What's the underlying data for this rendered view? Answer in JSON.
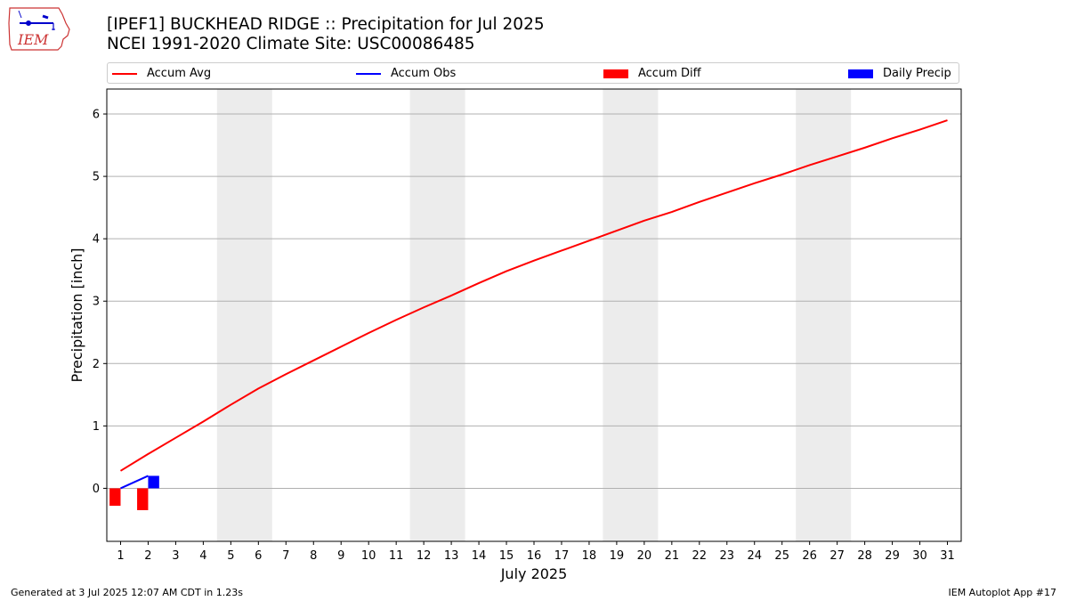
{
  "header": {
    "logo_text": "IEM",
    "title_line1": "[IPEF1] BUCKHEAD RIDGE :: Precipitation for Jul 2025",
    "title_line2": "NCEI 1991-2020 Climate Site: USC00086485"
  },
  "legend": {
    "placement": "top, above plot",
    "items": [
      {
        "label": "Accum Avg",
        "kind": "line",
        "color": "#ff0000"
      },
      {
        "label": "Accum Obs",
        "kind": "line",
        "color": "#0000ff"
      },
      {
        "label": "Accum Diff",
        "kind": "bar",
        "color": "#ff0000"
      },
      {
        "label": "Daily Precip",
        "kind": "bar",
        "color": "#0000ff"
      }
    ]
  },
  "footer": {
    "left": "Generated at 3 Jul 2025 12:07 AM CDT in 1.23s",
    "right": "IEM Autoplot App #17"
  },
  "chart_data": {
    "type": "line",
    "xlabel": "July 2025",
    "ylabel": "Precipitation [inch]",
    "xlim": [
      0.5,
      31.5
    ],
    "ylim": [
      -0.85,
      6.4
    ],
    "x_ticks": [
      1,
      2,
      3,
      4,
      5,
      6,
      7,
      8,
      9,
      10,
      11,
      12,
      13,
      14,
      15,
      16,
      17,
      18,
      19,
      20,
      21,
      22,
      23,
      24,
      25,
      26,
      27,
      28,
      29,
      30,
      31
    ],
    "y_ticks": [
      0,
      1,
      2,
      3,
      4,
      5,
      6
    ],
    "grid": "horizontal",
    "weekend_shading": [
      [
        4.5,
        6.5
      ],
      [
        11.5,
        13.5
      ],
      [
        18.5,
        20.5
      ],
      [
        25.5,
        27.5
      ]
    ],
    "colors": {
      "avg": "#ff0000",
      "obs": "#0000ff",
      "diff": "#ff0000",
      "daily": "#0000ff",
      "weekend": "#ececec",
      "grid": "#b0b0b0"
    },
    "series": [
      {
        "name": "Accum Avg",
        "x": [
          1,
          2,
          3,
          4,
          5,
          6,
          7,
          8,
          9,
          10,
          11,
          12,
          13,
          14,
          15,
          16,
          17,
          18,
          19,
          20,
          21,
          22,
          23,
          24,
          25,
          26,
          27,
          28,
          29,
          30,
          31
        ],
        "values": [
          0.28,
          0.55,
          0.81,
          1.07,
          1.34,
          1.6,
          1.83,
          2.05,
          2.27,
          2.49,
          2.7,
          2.9,
          3.09,
          3.29,
          3.48,
          3.65,
          3.81,
          3.97,
          4.13,
          4.29,
          4.43,
          4.59,
          4.74,
          4.89,
          5.03,
          5.18,
          5.32,
          5.46,
          5.61,
          5.75,
          5.9
        ]
      },
      {
        "name": "Accum Obs",
        "x": [
          1,
          2
        ],
        "values": [
          0.0,
          0.2
        ]
      },
      {
        "name": "Accum Diff",
        "x": [
          1,
          2
        ],
        "values": [
          -0.28,
          -0.35
        ]
      },
      {
        "name": "Daily Precip",
        "x": [
          1,
          2
        ],
        "values": [
          0.0,
          0.2
        ]
      }
    ]
  }
}
